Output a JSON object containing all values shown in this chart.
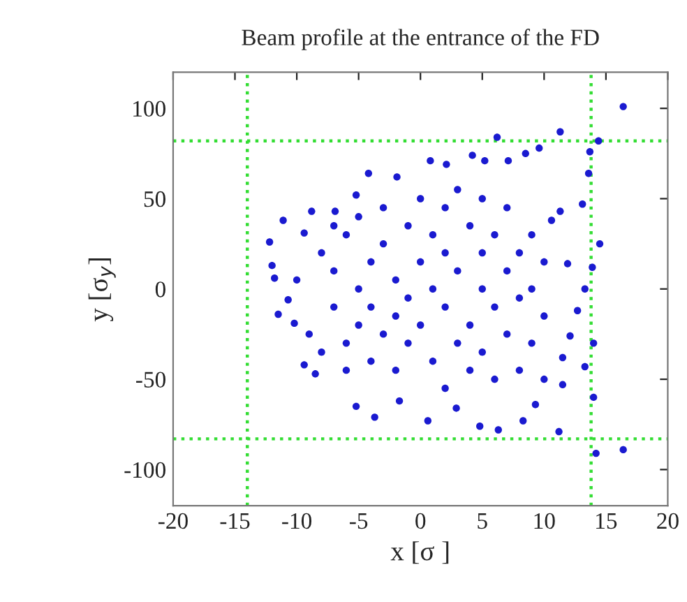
{
  "chart_data": {
    "type": "scatter",
    "title": "Beam profile at the entrance of the FD",
    "xlabel": "x [σ ]",
    "ylabel": "y [σ$_{y}$]",
    "xlim": [
      -20,
      20
    ],
    "ylim": [
      -120,
      120
    ],
    "xticks": [
      -20,
      -15,
      -10,
      -5,
      0,
      5,
      10,
      15,
      20
    ],
    "yticks": [
      -100,
      -50,
      0,
      50,
      100
    ],
    "grid": false,
    "legend": false,
    "marker": "circle",
    "ref_lines": [
      {
        "axis": "x",
        "value": -14,
        "color": "#33dd33",
        "line_style": "dotted"
      },
      {
        "axis": "x",
        "value": 13.8,
        "color": "#33dd33",
        "line_style": "dotted"
      },
      {
        "axis": "y",
        "value": 82,
        "color": "#33dd33",
        "line_style": "dotted"
      },
      {
        "axis": "y",
        "value": -83,
        "color": "#33dd33",
        "line_style": "dotted"
      }
    ],
    "series": [
      {
        "color": "#1a1ad0",
        "x": [
          16.4,
          16.4,
          14.2,
          14.4,
          13.7,
          13.6,
          11.3,
          6.2,
          9.6,
          -12.2,
          -12.0,
          -11.8,
          -11.5,
          -11.1,
          -10.7,
          -10.2,
          -9.4,
          -8.5,
          -8.8,
          -9.4,
          -4.2,
          -1.9,
          0.8,
          2.1,
          4.2,
          5.2,
          7.1,
          8.5,
          -5.2,
          -6.9,
          -5.2,
          -3.7,
          -1.7,
          0.6,
          2.9,
          4.8,
          6.3,
          8.3,
          11.2,
          9.3,
          11.5,
          11.5,
          12.1,
          12.7,
          13.3,
          13.9,
          14.5,
          14.0,
          14.0,
          13.1,
          13.3,
          11.9,
          11.3,
          10.6,
          -8,
          -7,
          -7,
          -6,
          -6,
          -5,
          -5,
          -5,
          -4,
          -4,
          -4,
          -3,
          -3,
          -3,
          -2,
          -2,
          -2,
          -1,
          -1,
          -1,
          0,
          0,
          0,
          1,
          1,
          1,
          2,
          2,
          2,
          2,
          3,
          3,
          3,
          4,
          4,
          4,
          5,
          5,
          5,
          5,
          6,
          6,
          6,
          7,
          7,
          7,
          8,
          8,
          8,
          9,
          9,
          9,
          10,
          10,
          10,
          -9,
          -10,
          -8,
          -6,
          -7
        ],
        "values": [
          101,
          -89,
          -91,
          82,
          76,
          64,
          87,
          84,
          78,
          26,
          13,
          6,
          -14,
          38,
          -6,
          -19,
          -42,
          -47,
          43,
          31,
          64,
          62,
          71,
          69,
          74,
          71,
          71,
          75,
          52,
          43,
          -65,
          -71,
          -62,
          -73,
          -66,
          -76,
          -78,
          -73,
          -79,
          -64,
          -38,
          -53,
          -26,
          -12,
          0,
          12,
          25,
          -30,
          -60,
          47,
          -43,
          14,
          43,
          38,
          20,
          -10,
          10,
          -30,
          30,
          0,
          -20,
          40,
          -40,
          15,
          -10,
          25,
          -25,
          45,
          5,
          -45,
          -15,
          35,
          -5,
          -30,
          15,
          -20,
          50,
          0,
          30,
          -40,
          -10,
          20,
          -55,
          45,
          -30,
          10,
          55,
          -20,
          35,
          -45,
          0,
          20,
          -35,
          50,
          -10,
          30,
          -50,
          10,
          -25,
          45,
          -5,
          20,
          -45,
          0,
          30,
          -30,
          -15,
          15,
          -50,
          -25,
          5,
          -35,
          -45,
          35
        ]
      }
    ]
  }
}
